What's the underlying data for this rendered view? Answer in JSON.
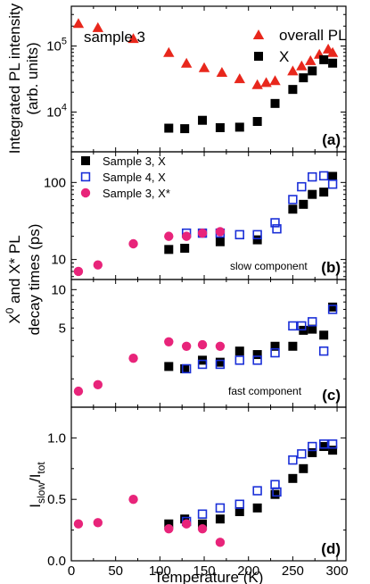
{
  "chart_data": [
    {
      "panel": "(a)",
      "type": "scatter",
      "ylabel": [
        "Integrated PL intensity",
        "(arb. units)"
      ],
      "yscale": "log",
      "ylim": [
        2500,
        400000
      ],
      "xlim": [
        0,
        310
      ],
      "yticks": [
        {
          "v": 10000,
          "base": "10",
          "exp": "4"
        },
        {
          "v": 100000,
          "base": "10",
          "exp": "5"
        }
      ],
      "annotation": "sample 3",
      "series": [
        {
          "name": "overall PL",
          "marker": "triangle",
          "color": "#e8271c",
          "x": [
            8,
            30,
            70,
            110,
            130,
            150,
            170,
            190,
            210,
            220,
            230,
            250,
            260,
            270,
            280,
            290,
            295
          ],
          "y": [
            220000,
            190000,
            130000,
            80000,
            55000,
            47000,
            40000,
            32000,
            26000,
            28000,
            30000,
            42000,
            50000,
            60000,
            75000,
            90000,
            80000
          ]
        },
        {
          "name": "X",
          "marker": "square",
          "color": "#000000",
          "x": [
            110,
            128,
            148,
            168,
            190,
            210,
            230,
            250,
            262,
            272,
            285,
            295
          ],
          "y": [
            5700,
            5600,
            7500,
            5800,
            5900,
            7200,
            13500,
            22000,
            33000,
            42000,
            62000,
            55000
          ]
        }
      ]
    },
    {
      "panel": "(b)",
      "type": "scatter",
      "ylabel": [
        "X",
        "0",
        " and X* PL",
        "decay times (ps)"
      ],
      "yscale": "log",
      "ylim": [
        5.5,
        250
      ],
      "xlim": [
        0,
        310
      ],
      "yticks": [
        {
          "v": 10,
          "label": "10"
        },
        {
          "v": 100,
          "label": "100"
        }
      ],
      "annotation": "slow component",
      "series": [
        {
          "name": "Sample 3, X",
          "marker": "square",
          "color": "#000000",
          "x": [
            110,
            128,
            168,
            210,
            250,
            262,
            272,
            285,
            295
          ],
          "y": [
            13.5,
            14,
            17,
            18,
            45,
            52,
            70,
            75,
            120
          ]
        },
        {
          "name": "Sample 4, X",
          "marker": "open-square",
          "color": "#1a2fd8",
          "x": [
            130,
            148,
            168,
            190,
            210,
            230,
            232,
            250,
            260,
            272,
            285,
            295
          ],
          "y": [
            22,
            22,
            22,
            21,
            21,
            30,
            25,
            60,
            88,
            118,
            122,
            95
          ]
        },
        {
          "name": "Sample 3, X*",
          "marker": "circle",
          "color": "#e8247a",
          "x": [
            8,
            30,
            70,
            110,
            130,
            148,
            168
          ],
          "y": [
            7,
            8.5,
            16,
            20,
            20,
            22,
            23
          ]
        }
      ]
    },
    {
      "panel": "(c)",
      "type": "scatter",
      "yscale": "log",
      "ylim": [
        1.2,
        12
      ],
      "xlim": [
        0,
        310
      ],
      "yticks": [
        {
          "v": 5,
          "label": "5"
        },
        {
          "v": 10,
          "label": "10"
        }
      ],
      "annotation": "fast component",
      "series": [
        {
          "name": "Sample 3, X",
          "marker": "square",
          "color": "#000000",
          "x": [
            110,
            128,
            148,
            168,
            190,
            210,
            230,
            250,
            262,
            272,
            285,
            295
          ],
          "y": [
            2.5,
            2.4,
            2.8,
            2.7,
            3.3,
            3.1,
            3.6,
            3.6,
            4.8,
            4.9,
            4.4,
            7.3
          ]
        },
        {
          "name": "Sample 4, X",
          "marker": "open-square",
          "color": "#1a2fd8",
          "x": [
            130,
            148,
            168,
            190,
            210,
            230,
            250,
            260,
            272,
            285,
            295
          ],
          "y": [
            2.4,
            2.6,
            2.6,
            2.8,
            2.8,
            3.2,
            5.2,
            5.2,
            5.6,
            3.3,
            7.0
          ]
        },
        {
          "name": "Sample 3, X*",
          "marker": "circle",
          "color": "#e8247a",
          "x": [
            8,
            30,
            70,
            110,
            130,
            148,
            168
          ],
          "y": [
            1.6,
            1.8,
            2.9,
            3.9,
            3.6,
            3.7,
            3.6
          ]
        }
      ]
    },
    {
      "panel": "(d)",
      "type": "scatter",
      "ylabel": [
        "I",
        "slow",
        "/I",
        "tot"
      ],
      "yscale": "linear",
      "ylim": [
        0,
        1.25
      ],
      "xlim": [
        0,
        310
      ],
      "yticks": [
        {
          "v": 0,
          "label": "0.0"
        },
        {
          "v": 0.5,
          "label": "0.5"
        },
        {
          "v": 1.0,
          "label": "1.0"
        }
      ],
      "xticks": [
        0,
        50,
        100,
        150,
        200,
        250,
        300
      ],
      "xlabel": "Temperature (K)",
      "series": [
        {
          "name": "Sample 3, X",
          "marker": "square",
          "color": "#000000",
          "x": [
            110,
            128,
            148,
            168,
            190,
            210,
            230,
            250,
            262,
            272,
            285,
            295
          ],
          "y": [
            0.3,
            0.34,
            0.3,
            0.34,
            0.4,
            0.43,
            0.54,
            0.67,
            0.75,
            0.88,
            0.93,
            0.9
          ]
        },
        {
          "name": "Sample 4, X",
          "marker": "open-square",
          "color": "#1a2fd8",
          "x": [
            130,
            148,
            168,
            190,
            210,
            230,
            232,
            250,
            260,
            272,
            285,
            295
          ],
          "y": [
            0.32,
            0.38,
            0.43,
            0.46,
            0.57,
            0.62,
            0.56,
            0.82,
            0.87,
            0.93,
            0.95,
            0.95
          ]
        },
        {
          "name": "Sample 3, X*",
          "marker": "circle",
          "color": "#e8247a",
          "x": [
            8,
            30,
            70,
            110,
            130,
            148,
            168
          ],
          "y": [
            0.3,
            0.31,
            0.5,
            0.26,
            0.3,
            0.26,
            0.15
          ]
        }
      ]
    }
  ]
}
